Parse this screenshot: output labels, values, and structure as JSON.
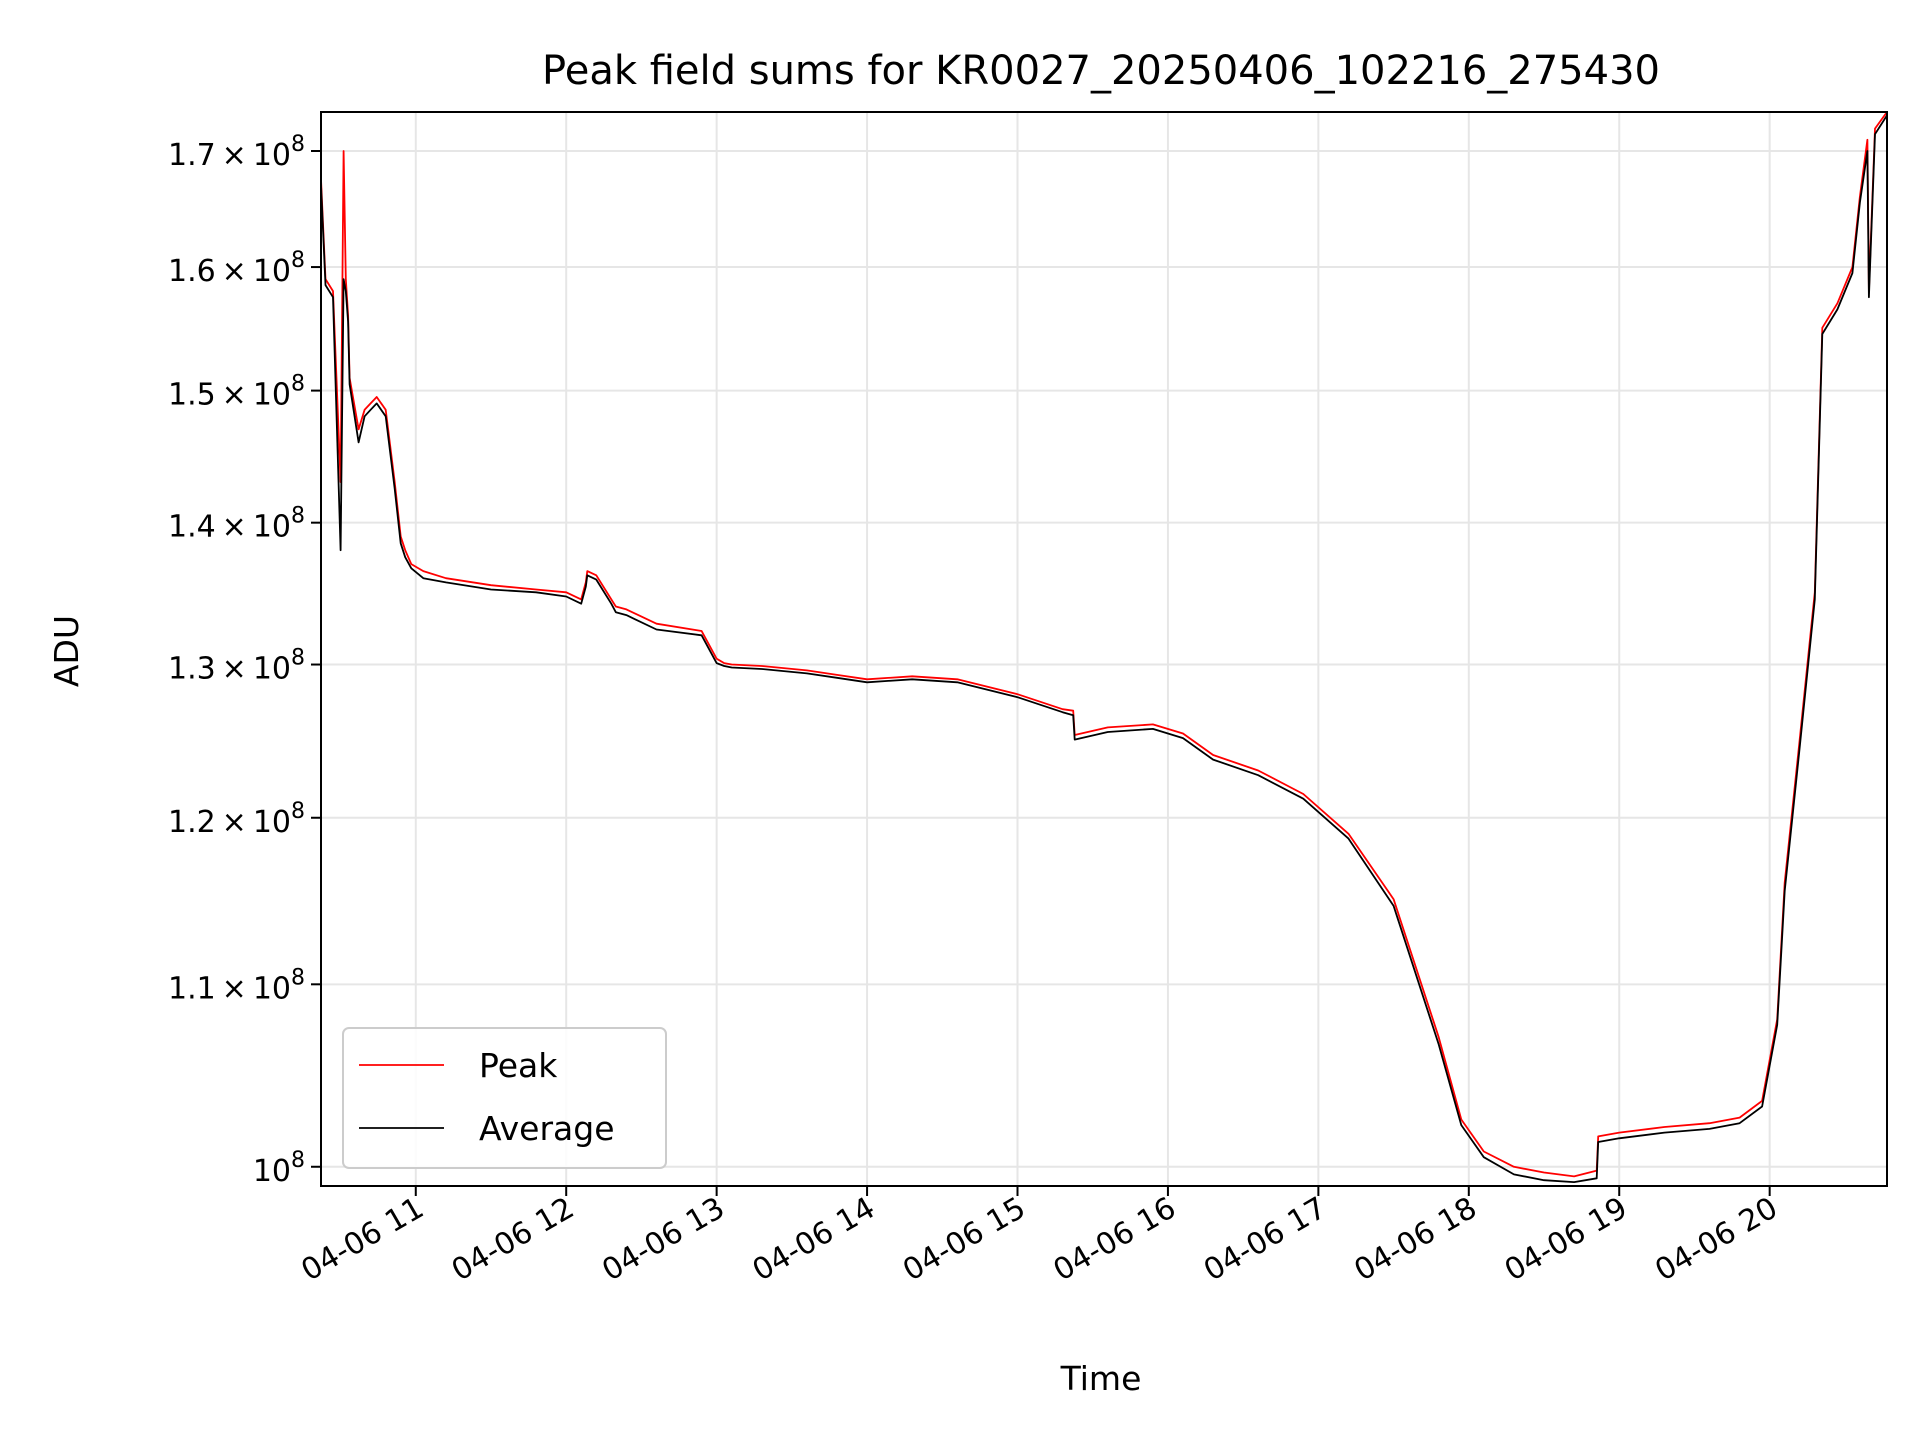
{
  "chart_data": {
    "type": "line",
    "title": "Peak field sums for KR0027_20250406_102216_275430",
    "xlabel": "Time",
    "ylabel": "ADU",
    "yscale": "log",
    "ylim": [
      99000000,
      173500000
    ],
    "xlim_hours": [
      10.37,
      20.78
    ],
    "x_unit": "hour of 2025-04-06",
    "grid": true,
    "legend_position": "lower-left",
    "xticks": [
      {
        "value": 11,
        "label": "04-06 11"
      },
      {
        "value": 12,
        "label": "04-06 12"
      },
      {
        "value": 13,
        "label": "04-06 13"
      },
      {
        "value": 14,
        "label": "04-06 14"
      },
      {
        "value": 15,
        "label": "04-06 15"
      },
      {
        "value": 16,
        "label": "04-06 16"
      },
      {
        "value": 17,
        "label": "04-06 17"
      },
      {
        "value": 18,
        "label": "04-06 18"
      },
      {
        "value": 19,
        "label": "04-06 19"
      },
      {
        "value": 20,
        "label": "04-06 20"
      }
    ],
    "yticks": [
      {
        "value": 100000000,
        "mantissa": "",
        "exp": "8"
      },
      {
        "value": 110000000,
        "mantissa": "1.1",
        "exp": "8"
      },
      {
        "value": 120000000,
        "mantissa": "1.2",
        "exp": "8"
      },
      {
        "value": 130000000,
        "mantissa": "1.3",
        "exp": "8"
      },
      {
        "value": 140000000,
        "mantissa": "1.4",
        "exp": "8"
      },
      {
        "value": 150000000,
        "mantissa": "1.5",
        "exp": "8"
      },
      {
        "value": 160000000,
        "mantissa": "1.6",
        "exp": "8"
      },
      {
        "value": 170000000,
        "mantissa": "1.7",
        "exp": "8"
      }
    ],
    "series": [
      {
        "name": "Peak",
        "color": "#ff0000",
        "x": [
          10.37,
          10.4,
          10.45,
          10.5,
          10.52,
          10.535,
          10.55,
          10.56,
          10.62,
          10.66,
          10.7,
          10.74,
          10.8,
          10.86,
          10.9,
          10.93,
          10.97,
          11.05,
          11.2,
          11.5,
          11.8,
          12.0,
          12.1,
          12.13,
          12.14,
          12.2,
          12.3,
          12.33,
          12.4,
          12.6,
          12.9,
          13.0,
          13.05,
          13.1,
          13.3,
          13.6,
          13.8,
          14.0,
          14.3,
          14.6,
          15.0,
          15.3,
          15.37,
          15.38,
          15.6,
          15.9,
          16.1,
          16.3,
          16.6,
          16.9,
          17.2,
          17.5,
          17.8,
          17.95,
          18.1,
          18.3,
          18.5,
          18.7,
          18.85,
          18.86,
          19.0,
          19.3,
          19.6,
          19.8,
          19.95,
          20.05,
          20.1,
          20.2,
          20.3,
          20.35,
          20.45,
          20.55,
          20.6,
          20.65,
          20.66,
          20.7,
          20.78
        ],
        "y": [
          167500000,
          159000000,
          158000000,
          143000000,
          170000000,
          159000000,
          156000000,
          151000000,
          147000000,
          148500000,
          149000000,
          149500000,
          148500000,
          143000000,
          139000000,
          138000000,
          137000000,
          136500000,
          136000000,
          135500000,
          135200000,
          135000000,
          134500000,
          135700000,
          136500000,
          136200000,
          134500000,
          134000000,
          133800000,
          132800000,
          132300000,
          130400000,
          130100000,
          130000000,
          129900000,
          129600000,
          129300000,
          129000000,
          129200000,
          129000000,
          128000000,
          127000000,
          126900000,
          125300000,
          125800000,
          126000000,
          125400000,
          124000000,
          123000000,
          121500000,
          119000000,
          115000000,
          107000000,
          102500000,
          100800000,
          100000000,
          99700000,
          99500000,
          99800000,
          101600000,
          101800000,
          102100000,
          102300000,
          102600000,
          103500000,
          108000000,
          116000000,
          125000000,
          135000000,
          155000000,
          157000000,
          160000000,
          166000000,
          171000000,
          158000000,
          172000000,
          173500000
        ]
      },
      {
        "name": "Average",
        "color": "#000000",
        "x": [
          10.37,
          10.4,
          10.45,
          10.5,
          10.52,
          10.535,
          10.55,
          10.56,
          10.62,
          10.66,
          10.7,
          10.74,
          10.8,
          10.86,
          10.9,
          10.93,
          10.97,
          11.05,
          11.2,
          11.5,
          11.8,
          12.0,
          12.1,
          12.13,
          12.14,
          12.2,
          12.3,
          12.33,
          12.4,
          12.6,
          12.9,
          13.0,
          13.05,
          13.1,
          13.3,
          13.6,
          13.8,
          14.0,
          14.3,
          14.6,
          15.0,
          15.3,
          15.37,
          15.38,
          15.6,
          15.9,
          16.1,
          16.3,
          16.6,
          16.9,
          17.2,
          17.5,
          17.8,
          17.95,
          18.1,
          18.3,
          18.5,
          18.7,
          18.85,
          18.86,
          19.0,
          19.3,
          19.6,
          19.8,
          19.95,
          20.05,
          20.1,
          20.2,
          20.3,
          20.35,
          20.45,
          20.55,
          20.6,
          20.65,
          20.66,
          20.7,
          20.78
        ],
        "y": [
          167000000,
          158500000,
          157500000,
          138000000,
          159000000,
          158000000,
          155500000,
          150500000,
          146000000,
          148000000,
          148500000,
          149000000,
          148000000,
          142500000,
          138500000,
          137500000,
          136700000,
          136000000,
          135700000,
          135200000,
          135000000,
          134700000,
          134200000,
          135400000,
          136200000,
          135900000,
          134200000,
          133600000,
          133400000,
          132400000,
          132000000,
          130100000,
          129900000,
          129800000,
          129700000,
          129400000,
          129100000,
          128800000,
          129000000,
          128800000,
          127800000,
          126800000,
          126600000,
          125000000,
          125500000,
          125700000,
          125100000,
          123700000,
          122700000,
          121200000,
          118700000,
          114600000,
          106600000,
          102200000,
          100500000,
          99600000,
          99300000,
          99200000,
          99400000,
          101300000,
          101500000,
          101800000,
          102000000,
          102300000,
          103200000,
          107700000,
          115500000,
          124500000,
          134500000,
          154500000,
          156500000,
          159500000,
          165500000,
          170000000,
          157500000,
          171500000,
          173200000
        ]
      }
    ]
  }
}
